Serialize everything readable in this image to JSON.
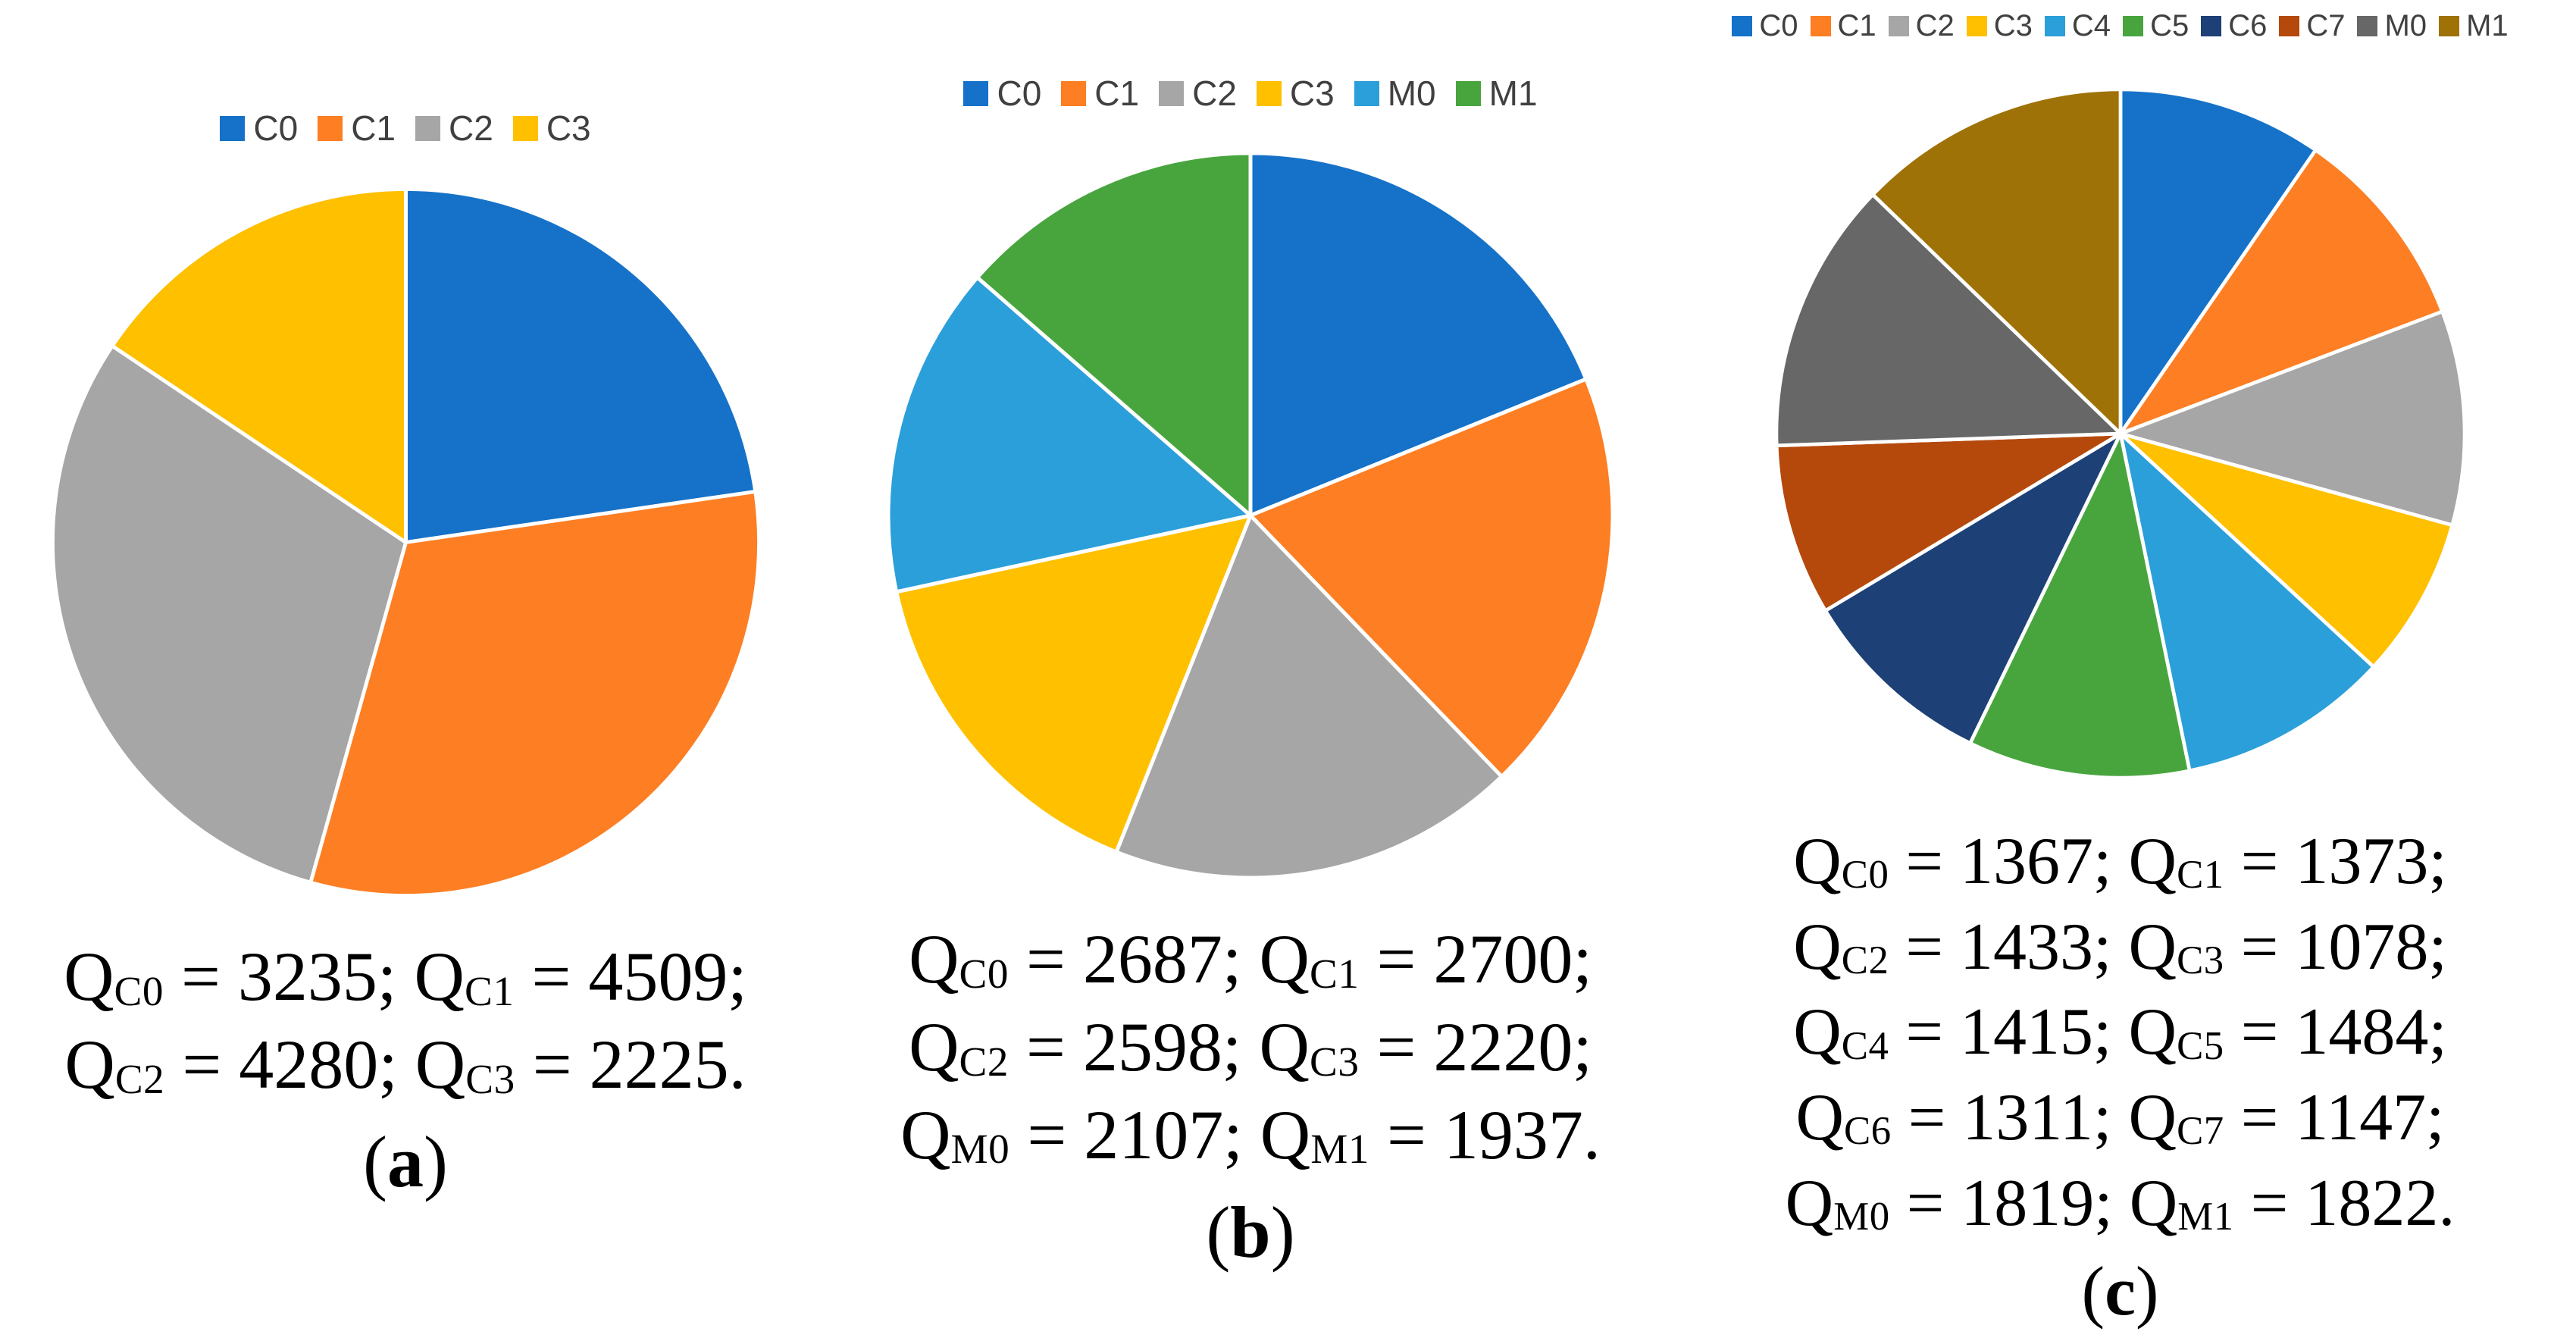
{
  "figure": {
    "charts": [
      {
        "id": "a",
        "caption_letter": "a",
        "chart_data": {
          "type": "pie",
          "title": "",
          "legend_position": "top",
          "start_angle_deg": 0,
          "direction": "clockwise",
          "categories": [
            "C0",
            "C1",
            "C2",
            "C3"
          ],
          "values": [
            3235,
            4509,
            4280,
            2225
          ],
          "colors": [
            "#1572C8",
            "#FD7E23",
            "#A6A6A6",
            "#FFC000"
          ],
          "total": 14249
        },
        "equations": [
          [
            {
              "base": "Q",
              "sub": "C0",
              "eq": " = ",
              "value": "3235",
              "after": "; "
            },
            {
              "base": "Q",
              "sub": "C1",
              "eq": " = ",
              "value": "4509",
              "after": ";"
            }
          ],
          [
            {
              "base": "Q",
              "sub": "C2",
              "eq": " = ",
              "value": "4280",
              "after": "; "
            },
            {
              "base": "Q",
              "sub": "C3",
              "eq": " = ",
              "value": "2225",
              "after": "."
            }
          ]
        ]
      },
      {
        "id": "b",
        "caption_letter": "b",
        "chart_data": {
          "type": "pie",
          "title": "",
          "legend_position": "top",
          "start_angle_deg": 0,
          "direction": "clockwise",
          "categories": [
            "C0",
            "C1",
            "C2",
            "C3",
            "M0",
            "M1"
          ],
          "values": [
            2687,
            2700,
            2598,
            2220,
            2107,
            1937
          ],
          "colors": [
            "#1572C8",
            "#FD7E23",
            "#A6A6A6",
            "#FFC000",
            "#2B9FD9",
            "#48A53E"
          ],
          "total": 14249
        },
        "equations": [
          [
            {
              "base": "Q",
              "sub": "C0",
              "eq": " = ",
              "value": "2687",
              "after": "; "
            },
            {
              "base": "Q",
              "sub": "C1",
              "eq": " = ",
              "value": "2700",
              "after": ";"
            }
          ],
          [
            {
              "base": "Q",
              "sub": "C2",
              "eq": " = ",
              "value": "2598",
              "after": "; "
            },
            {
              "base": "Q",
              "sub": "C3",
              "eq": " = ",
              "value": "2220",
              "after": ";"
            }
          ],
          [
            {
              "base": "Q",
              "sub": "M0",
              "eq": " = ",
              "value": "2107",
              "after": "; "
            },
            {
              "base": "Q",
              "sub": "M1",
              "eq": " = ",
              "value": "1937",
              "after": "."
            }
          ]
        ]
      },
      {
        "id": "c",
        "caption_letter": "c",
        "chart_data": {
          "type": "pie",
          "title": "",
          "legend_position": "top",
          "start_angle_deg": 0,
          "direction": "clockwise",
          "categories": [
            "C0",
            "C1",
            "C2",
            "C3",
            "C4",
            "C5",
            "C6",
            "C7",
            "M0",
            "M1"
          ],
          "values": [
            1367,
            1373,
            1433,
            1078,
            1415,
            1484,
            1311,
            1147,
            1819,
            1822
          ],
          "colors": [
            "#1572C8",
            "#FD7E23",
            "#A6A6A6",
            "#FFC000",
            "#2B9FD9",
            "#48A53E",
            "#1D4076",
            "#B5490B",
            "#676767",
            "#9E7206"
          ],
          "total": 14249
        },
        "equations": [
          [
            {
              "base": "Q",
              "sub": "C0",
              "eq": " = ",
              "value": "1367",
              "after": "; "
            },
            {
              "base": "Q",
              "sub": "C1",
              "eq": " = ",
              "value": "1373",
              "after": ";"
            }
          ],
          [
            {
              "base": "Q",
              "sub": "C2",
              "eq": " = ",
              "value": "1433",
              "after": "; "
            },
            {
              "base": "Q",
              "sub": "C3",
              "eq": " = ",
              "value": "1078",
              "after": ";"
            }
          ],
          [
            {
              "base": "Q",
              "sub": "C4",
              "eq": " = ",
              "value": "1415",
              "after": "; "
            },
            {
              "base": "Q",
              "sub": "C5",
              "eq": " = ",
              "value": "1484",
              "after": ";"
            }
          ],
          [
            {
              "base": "Q",
              "sub": "C6",
              "eq": " = ",
              "value": "1311",
              "after": "; "
            },
            {
              "base": "Q",
              "sub": "C7",
              "eq": " = ",
              "value": "1147",
              "after": ";"
            }
          ],
          [
            {
              "base": "Q",
              "sub": "M0",
              "eq": " = ",
              "value": "1819",
              "after": "; "
            },
            {
              "base": "Q",
              "sub": "M1",
              "eq": " = ",
              "value": "1822",
              "after": "."
            }
          ]
        ]
      }
    ],
    "caption_open": "(",
    "caption_close": ")",
    "slice_border_color": "#ffffff",
    "legend_text_color": "#404040"
  }
}
